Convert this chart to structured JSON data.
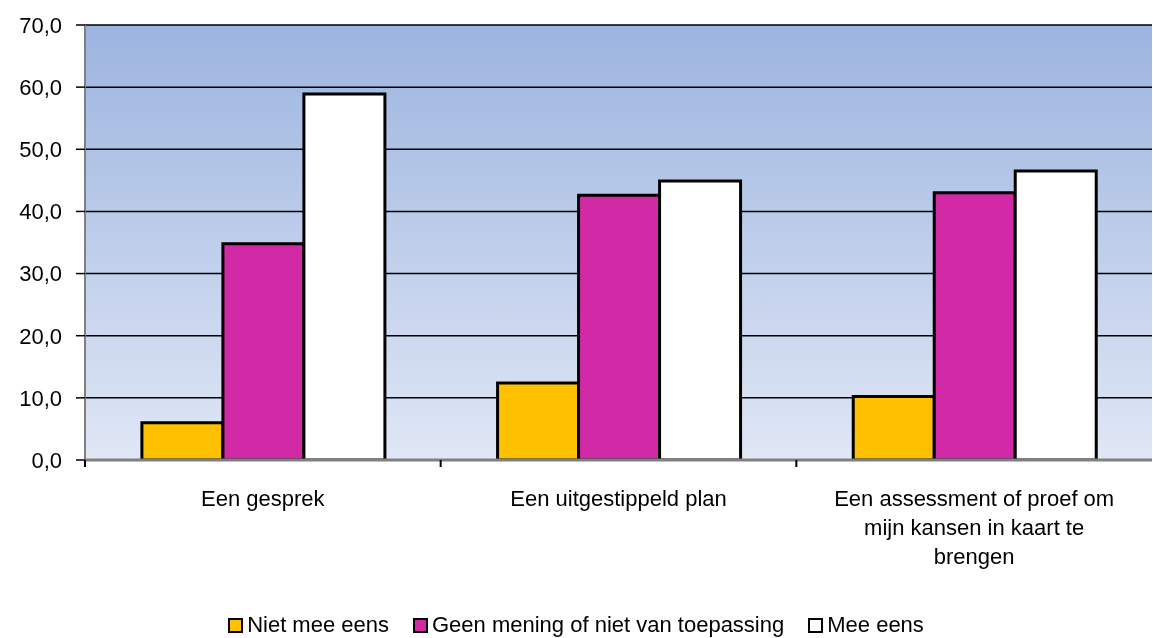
{
  "chart_data": {
    "type": "bar",
    "categories": [
      "Een gesprek",
      "Een uitgestippeld plan",
      "Een assessment of proef om mijn kansen in kaart te brengen"
    ],
    "series": [
      {
        "name": "Niet mee eens",
        "color": "#ffc000",
        "values": [
          6.0,
          12.4,
          10.2
        ]
      },
      {
        "name": "Geen mening of niet van toepassing",
        "color": "#d22aa6",
        "values": [
          34.8,
          42.6,
          43.0
        ]
      },
      {
        "name": "Mee eens",
        "color": "#ffffff",
        "values": [
          58.9,
          44.9,
          46.5
        ]
      }
    ],
    "ylim": [
      0,
      70
    ],
    "yticks": [
      {
        "value": 0,
        "label": "0,0"
      },
      {
        "value": 10,
        "label": "10,0"
      },
      {
        "value": 20,
        "label": "20,0"
      },
      {
        "value": 30,
        "label": "30,0"
      },
      {
        "value": 40,
        "label": "40,0"
      },
      {
        "value": 50,
        "label": "50,0"
      },
      {
        "value": 60,
        "label": "60,0"
      },
      {
        "value": 70,
        "label": "70,0"
      }
    ],
    "grid": "y",
    "legend": "bottom"
  }
}
